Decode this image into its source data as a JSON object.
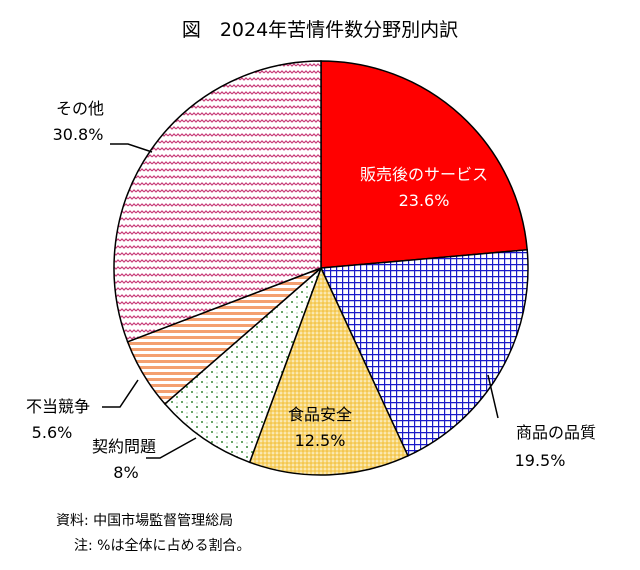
{
  "chart_data": {
    "type": "pie",
    "title": "図　2024年苦情件数分野別内訳",
    "slices": [
      {
        "label": "販売後のサービス",
        "value_label": "23.6%",
        "value": 23.6,
        "color": "#ff0000",
        "pattern": "solid"
      },
      {
        "label": "商品の品質",
        "value_label": "19.5%",
        "value": 19.5,
        "color": "#1a1ac8",
        "pattern": "grid"
      },
      {
        "label": "食品安全",
        "value_label": "12.5%",
        "value": 12.5,
        "color": "#f5c84a",
        "pattern": "dots"
      },
      {
        "label": "契約問題",
        "value_label": "8%",
        "value": 8.0,
        "color": "#3a8a3a",
        "pattern": "sparse-dots"
      },
      {
        "label": "不当競争",
        "value_label": "5.6%",
        "value": 5.6,
        "color": "#f4a070",
        "pattern": "h-stripes"
      },
      {
        "label": "その他",
        "value_label": "30.8%",
        "value": 30.8,
        "color": "#c83c78",
        "pattern": "wave"
      }
    ],
    "legend": "none"
  },
  "notes": {
    "source": "資料: 中国市場監督管理総局",
    "note": "注: %は全体に占める割合。"
  }
}
